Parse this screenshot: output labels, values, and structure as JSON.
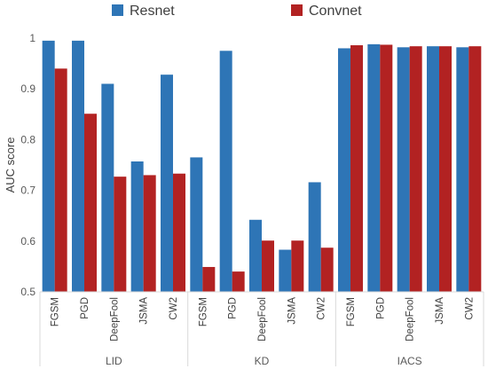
{
  "chart_data": {
    "type": "bar",
    "ylabel": "AUC score",
    "ylim": [
      0.5,
      1.0
    ],
    "yticks": [
      "0.5",
      "0.6",
      "0.7",
      "0.8",
      "0.9",
      "1"
    ],
    "grid": false,
    "legend_position": "top",
    "groups": [
      {
        "name": "LID",
        "categories": [
          "FGSM",
          "PGD",
          "DeepFool",
          "JSMA",
          "CW2"
        ]
      },
      {
        "name": "KD",
        "categories": [
          "FGSM",
          "PGD",
          "DeepFool",
          "JSMA",
          "CW2"
        ]
      },
      {
        "name": "IACS",
        "categories": [
          "FGSM",
          "PGD",
          "DeepFool",
          "JSMA",
          "CW2"
        ]
      }
    ],
    "series": [
      {
        "name": "Resnet",
        "color": "#2e75b6",
        "values": [
          0.995,
          0.995,
          0.91,
          0.757,
          0.928,
          0.765,
          0.975,
          0.642,
          0.583,
          0.716,
          0.98,
          0.988,
          0.982,
          0.984,
          0.982
        ]
      },
      {
        "name": "Convnet",
        "color": "#b22222",
        "values": [
          0.94,
          0.851,
          0.727,
          0.73,
          0.733,
          0.549,
          0.54,
          0.601,
          0.601,
          0.587,
          0.986,
          0.987,
          0.984,
          0.984,
          0.984
        ]
      }
    ]
  }
}
